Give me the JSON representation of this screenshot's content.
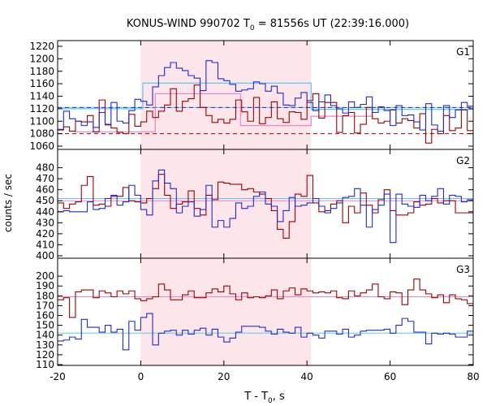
{
  "title_main": "KONUS-WIND 990702 T",
  "title_sub": "0",
  "title_rest": " = 81556s UT (22:39:16.000)",
  "ylabel": "counts / sec",
  "xlabel_main": "T - T",
  "xlabel_sub": "0",
  "xlabel_rest": ", s",
  "colors": {
    "blue": "#1f2bd6",
    "red": "#a00000",
    "cyan": "#5ec7ee",
    "pink": "#ee82c8",
    "shade": "#fde6ea"
  },
  "chart_data": {
    "type": "line",
    "xlim": [
      -20,
      80
    ],
    "xticks": [
      -20,
      0,
      20,
      40,
      60,
      80
    ],
    "shaded_interval": [
      0,
      41
    ],
    "panels": [
      {
        "label": "G1",
        "ylim": [
          1060,
          1220
        ],
        "yticks": [
          1060,
          1080,
          1100,
          1120,
          1140,
          1160,
          1180,
          1200,
          1220
        ],
        "blue_levels": [
          1087,
          1116,
          1104,
          1100,
          1093,
          1099,
          1090,
          1114,
          1095,
          1130,
          1100,
          1097,
          1117,
          1135,
          1132,
          1126,
          1155,
          1173,
          1186,
          1194,
          1185,
          1181,
          1173,
          1169,
          1149,
          1197,
          1194,
          1168,
          1165,
          1159,
          1148,
          1150,
          1152,
          1163,
          1160,
          1148,
          1156,
          1145,
          1126,
          1125,
          1137,
          1146,
          1130,
          1117,
          1131,
          1142,
          1125,
          1120,
          1113,
          1131,
          1122,
          1127,
          1139,
          1114,
          1123,
          1117,
          1093,
          1125,
          1109,
          1110,
          1099,
          1086,
          1128,
          1094,
          1084,
          1125,
          1106,
          1118,
          1130,
          1124
        ],
        "red_levels": [
          1086,
          1091,
          1084,
          1100,
          1099,
          1109,
          1083,
          1134,
          1094,
          1089,
          1082,
          1080,
          1111,
          1092,
          1099,
          1116,
          1106,
          1116,
          1126,
          1152,
          1116,
          1132,
          1136,
          1158,
          1122,
          1109,
          1098,
          1103,
          1097,
          1103,
          1134,
          1115,
          1100,
          1138,
          1096,
          1106,
          1131,
          1104,
          1098,
          1115,
          1114,
          1103,
          1133,
          1144,
          1105,
          1130,
          1130,
          1082,
          1109,
          1114,
          1081,
          1095,
          1122,
          1104,
          1097,
          1100,
          1118,
          1097,
          1104,
          1101,
          1089,
          1112,
          1065,
          1087,
          1080,
          1109,
          1085,
          1089,
          1118,
          1085
        ],
        "blue_background": 1122,
        "red_background": 1080,
        "blue_bayesian": [
          {
            "x": [
              -20,
              0.5
            ],
            "y": 1120
          },
          {
            "x": [
              0.5,
              41
            ],
            "y": 1161
          },
          {
            "x": [
              41,
              80
            ],
            "y": 1119
          }
        ],
        "red_bayesian": [
          {
            "x": [
              -16,
              3.5
            ],
            "y": 1083
          },
          {
            "x": [
              3.5,
              24
            ],
            "y": 1144
          },
          {
            "x": [
              24,
              41
            ],
            "y": 1093
          },
          {
            "x": [
              41,
              56
            ],
            "y": 1108
          }
        ]
      },
      {
        "label": "G2",
        "ylim": [
          400,
          490
        ],
        "yticks": [
          400,
          410,
          420,
          430,
          440,
          450,
          460,
          470,
          480
        ],
        "blue_levels": [
          440,
          441,
          440,
          440,
          440,
          449,
          442,
          443,
          452,
          455,
          446,
          449,
          464,
          455,
          442,
          437,
          468,
          478,
          466,
          461,
          439,
          445,
          449,
          436,
          442,
          464,
          426,
          432,
          426,
          434,
          448,
          443,
          445,
          454,
          458,
          447,
          445,
          431,
          441,
          453,
          445,
          446,
          448,
          452,
          445,
          439,
          443,
          448,
          453,
          454,
          461,
          446,
          426,
          442,
          446,
          456,
          412,
          456,
          447,
          445,
          444,
          455,
          450,
          454,
          461,
          447,
          455,
          454,
          449,
          451
        ],
        "red_levels": [
          448,
          443,
          447,
          449,
          464,
          472,
          446,
          447,
          445,
          454,
          454,
          462,
          450,
          449,
          448,
          452,
          461,
          474,
          455,
          443,
          447,
          449,
          459,
          443,
          437,
          455,
          451,
          467,
          466,
          465,
          465,
          460,
          461,
          458,
          456,
          452,
          441,
          424,
          416,
          431,
          456,
          454,
          473,
          448,
          440,
          441,
          447,
          450,
          430,
          445,
          439,
          457,
          446,
          439,
          451,
          460,
          441,
          437,
          437,
          439,
          449,
          446,
          447,
          452,
          448,
          450,
          450,
          439,
          439,
          439
        ],
        "blue_background": 452,
        "red_background": 450
      },
      {
        "label": "G3",
        "ylim": [
          110,
          210
        ],
        "yticks": [
          110,
          120,
          130,
          140,
          150,
          160,
          170,
          180,
          190,
          200
        ],
        "blue_levels": [
          134,
          135,
          138,
          136,
          156,
          148,
          148,
          143,
          150,
          143,
          146,
          125,
          154,
          145,
          158,
          162,
          130,
          142,
          144,
          145,
          140,
          145,
          141,
          145,
          147,
          140,
          146,
          138,
          133,
          137,
          143,
          149,
          149,
          149,
          148,
          144,
          141,
          146,
          143,
          142,
          148,
          138,
          142,
          140,
          137,
          144,
          144,
          141,
          146,
          138,
          140,
          144,
          145,
          145,
          145,
          146,
          142,
          150,
          157,
          154,
          143,
          143,
          131,
          142,
          141,
          142,
          141,
          138,
          138,
          144
        ],
        "red_levels": [
          176,
          178,
          158,
          184,
          186,
          186,
          178,
          185,
          183,
          179,
          185,
          182,
          185,
          177,
          175,
          177,
          179,
          192,
          186,
          176,
          176,
          181,
          185,
          178,
          178,
          183,
          187,
          184,
          190,
          182,
          176,
          183,
          178,
          179,
          178,
          180,
          186,
          177,
          185,
          188,
          181,
          187,
          185,
          183,
          184,
          183,
          185,
          178,
          177,
          185,
          180,
          183,
          186,
          192,
          179,
          177,
          184,
          183,
          171,
          186,
          197,
          186,
          182,
          178,
          181,
          173,
          181,
          177,
          176,
          172
        ],
        "blue_background": 142,
        "red_background": 179
      }
    ]
  }
}
